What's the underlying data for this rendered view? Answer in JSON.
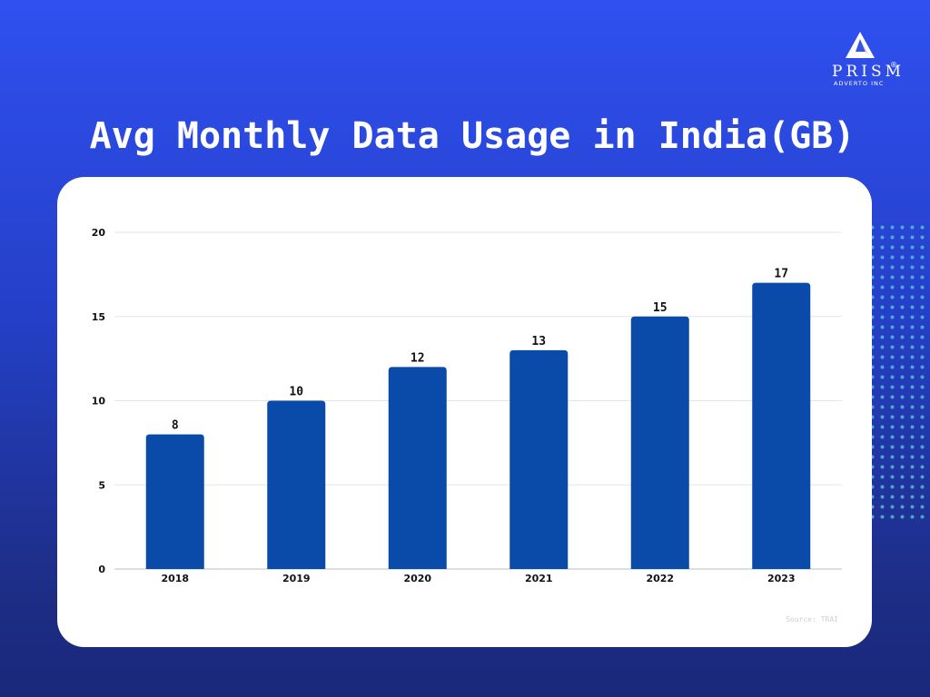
{
  "logo": {
    "word": "PRISM",
    "registered": "®",
    "subtitle": "ADVERTO INC"
  },
  "colors": {
    "background_top": "#3050f0",
    "background_bottom": "#1a2878",
    "bar": "#0a4aa8",
    "card": "#ffffff",
    "gridline": "#e6e6e6",
    "dots": "#5fcdd7"
  },
  "source": "Source: TRAI",
  "chart_data": {
    "type": "bar",
    "title": "Avg Monthly Data Usage in India(GB)",
    "categories": [
      "2018",
      "2019",
      "2020",
      "2021",
      "2022",
      "2023"
    ],
    "values": [
      8,
      10,
      12,
      13,
      15,
      17
    ],
    "yticks": [
      0,
      5,
      10,
      15,
      20
    ],
    "ylim": [
      0,
      20
    ],
    "xlabel": "",
    "ylabel": "",
    "grid": true,
    "legend": "none",
    "data_labels": true
  }
}
